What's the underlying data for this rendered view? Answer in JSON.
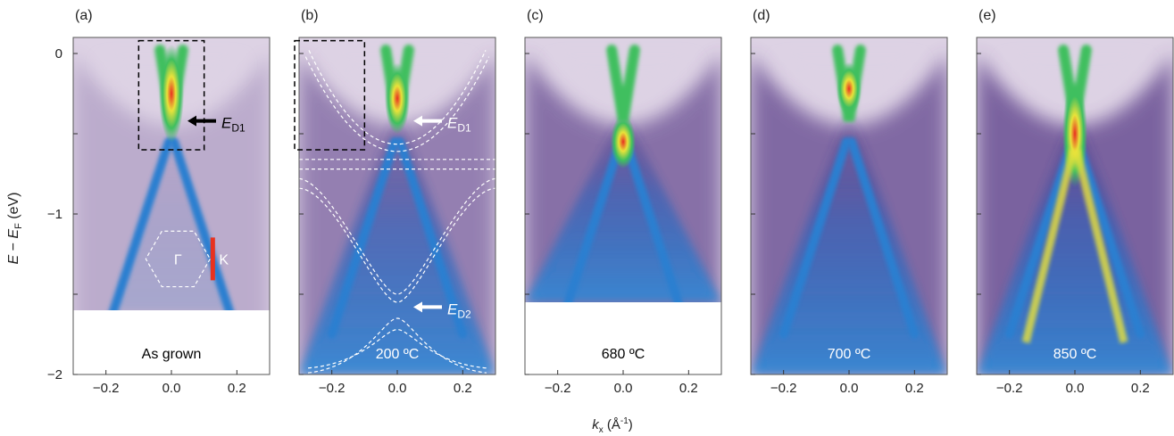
{
  "figure": {
    "ylabel": {
      "E": "E",
      "dash": " − ",
      "E2": "E",
      "sub": "F",
      "unit": " (eV)"
    },
    "xlabel": {
      "k": "k",
      "sub": "x",
      "unit_pre": " (Å",
      "sup": "-1",
      "unit_post": ")"
    },
    "hexagon_labels": {
      "center": "Γ",
      "corner": "K"
    }
  },
  "chart_data": [
    {
      "type": "heatmap",
      "panel": "(a)",
      "condition": "As grown",
      "xlim": [
        -0.3,
        0.3
      ],
      "ylim": [
        -2.0,
        0.1
      ],
      "data_ymin": -1.6,
      "x_ticks": [
        -0.2,
        0.0,
        0.2
      ],
      "x_tick_labels": [
        "−0.2",
        "0.0",
        "0.2"
      ],
      "y_ticks": [
        0,
        -1,
        -2
      ],
      "y_tick_labels": [
        "0",
        "−1",
        "−2"
      ],
      "dirac_points": [
        {
          "label": "E",
          "sub": "D1",
          "energy": -0.42
        }
      ],
      "label_color": "#000000"
    },
    {
      "type": "heatmap",
      "panel": "(b)",
      "condition": "200 ºC",
      "xlim": [
        -0.3,
        0.3
      ],
      "ylim": [
        -2.0,
        0.1
      ],
      "data_ymin": -2.0,
      "x_ticks": [
        -0.2,
        0.0,
        0.2
      ],
      "x_tick_labels": [
        "−0.2",
        "0.0",
        "0.2"
      ],
      "dirac_points": [
        {
          "label": "E",
          "sub": "D1",
          "energy": -0.42
        },
        {
          "label": "E",
          "sub": "D2",
          "energy": -1.58
        }
      ],
      "label_color": "#ffffff"
    },
    {
      "type": "heatmap",
      "panel": "(c)",
      "condition": "680 ºC",
      "xlim": [
        -0.3,
        0.3
      ],
      "ylim": [
        -2.0,
        0.1
      ],
      "data_ymin": -1.55,
      "x_ticks": [
        -0.2,
        0.0,
        0.2
      ],
      "x_tick_labels": [
        "−0.2",
        "0.0",
        "0.2"
      ],
      "label_color": "#000000"
    },
    {
      "type": "heatmap",
      "panel": "(d)",
      "condition": "700 ºC",
      "xlim": [
        -0.3,
        0.3
      ],
      "ylim": [
        -2.0,
        0.1
      ],
      "data_ymin": -2.0,
      "x_ticks": [
        -0.2,
        0.0,
        0.2
      ],
      "x_tick_labels": [
        "−0.2",
        "0.0",
        "0.2"
      ],
      "label_color": "#ffffff"
    },
    {
      "type": "heatmap",
      "panel": "(e)",
      "condition": "850 ºC",
      "xlim": [
        -0.3,
        0.3
      ],
      "ylim": [
        -2.0,
        0.1
      ],
      "data_ymin": -2.0,
      "x_ticks": [
        -0.2,
        0.0,
        0.2
      ],
      "x_tick_labels": [
        "−0.2",
        "0.0",
        "0.2"
      ],
      "label_color": "#ffffff"
    }
  ],
  "colors": {
    "background": "#ddd2e4",
    "outer": "#5a3d88",
    "band_blue": "#2a7fd0",
    "band_green": "#3fbf5f",
    "band_yellow": "#e8e23a",
    "band_red": "#e83020",
    "k_marker": "#e8321e",
    "dashes": "#ffffff",
    "box": "#000000"
  }
}
